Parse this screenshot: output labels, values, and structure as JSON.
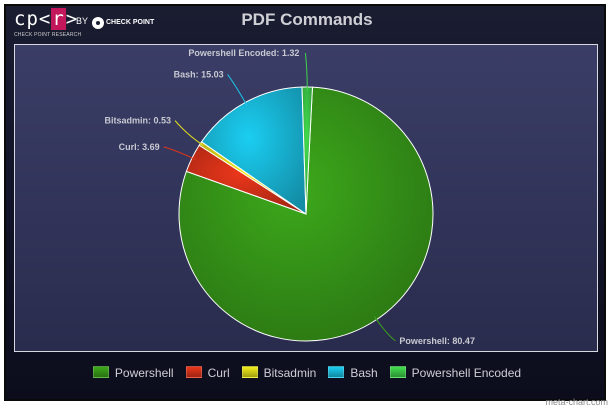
{
  "logo": {
    "cpr_prefix": "cp<",
    "cpr_r": "r",
    "cpr_suffix": ">",
    "subtitle": "CHECK POINT RESEARCH",
    "by": "BY",
    "brand": "CHECK POINT"
  },
  "watermark": "meta-chart.com",
  "chart_data": {
    "type": "pie",
    "title": "PDF Commands",
    "slices": [
      {
        "name": "Powershell",
        "value": 80.47,
        "label": "Powershell: 80.47",
        "color": "#3aa11a"
      },
      {
        "name": "Curl",
        "value": 3.69,
        "label": "Curl: 3.69",
        "color": "#e0341a"
      },
      {
        "name": "Bitsadmin",
        "value": 0.53,
        "label": "Bitsadmin: 0.53",
        "color": "#e6e21a"
      },
      {
        "name": "Bash",
        "value": 15.03,
        "label": "Bash: 15.03",
        "color": "#1ac4e6"
      },
      {
        "name": "Powershell Encoded",
        "value": 1.32,
        "label": "Powershell Encoded: 1.32",
        "color": "#3fd24a"
      }
    ],
    "legend_position": "bottom"
  }
}
